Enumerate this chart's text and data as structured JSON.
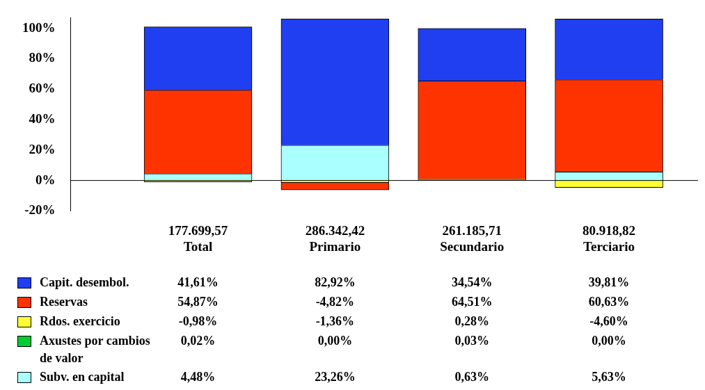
{
  "chart_data": {
    "type": "bar",
    "stacked": true,
    "categories": [
      "177.699,57\nTotal",
      "286.342,42\nPrimario",
      "261.185,71\nSecundario",
      "80.918,82\nTerciario"
    ],
    "series": [
      {
        "name": "Subv. en capital",
        "color": "#aaffff",
        "values": [
          4.48,
          23.26,
          0.63,
          5.63
        ],
        "value_labels": [
          "4,48%",
          "23,26%",
          "0,63%",
          "5,63%"
        ]
      },
      {
        "name": "Axustes por cambios de valor",
        "color": "#00cc33",
        "values": [
          0.02,
          0.0,
          0.03,
          0.0
        ],
        "value_labels": [
          "0,02%",
          "0,00%",
          "0,03%",
          "0,00%"
        ]
      },
      {
        "name": "Rdos. exercicio",
        "color": "#ffff33",
        "values": [
          -0.98,
          -1.36,
          0.28,
          -4.6
        ],
        "value_labels": [
          "-0,98%",
          "-1,36%",
          "0,28%",
          "-4,60%"
        ]
      },
      {
        "name": "Reservas",
        "color": "#ff3300",
        "values": [
          54.87,
          -4.82,
          64.51,
          60.63
        ],
        "value_labels": [
          "54,87%",
          "-4,82%",
          "64,51%",
          "60,63%"
        ]
      },
      {
        "name": "Capit. desembol.",
        "color": "#1f3ff0",
        "values": [
          41.61,
          82.92,
          34.54,
          39.81
        ],
        "value_labels": [
          "41,61%",
          "82,92%",
          "34,54%",
          "39,81%"
        ]
      }
    ],
    "ylim": [
      -20,
      107
    ],
    "yticks": [
      {
        "value": -20,
        "label": "-20%"
      },
      {
        "value": 0,
        "label": "0%"
      },
      {
        "value": 20,
        "label": "20%"
      },
      {
        "value": 40,
        "label": "40%"
      },
      {
        "value": 60,
        "label": "60%"
      },
      {
        "value": 80,
        "label": "80%"
      },
      {
        "value": 100,
        "label": "100%"
      }
    ],
    "ref_lines": [
      {
        "axis": "y",
        "value": 0,
        "color": "#000000"
      }
    ],
    "legend": "bottom"
  }
}
